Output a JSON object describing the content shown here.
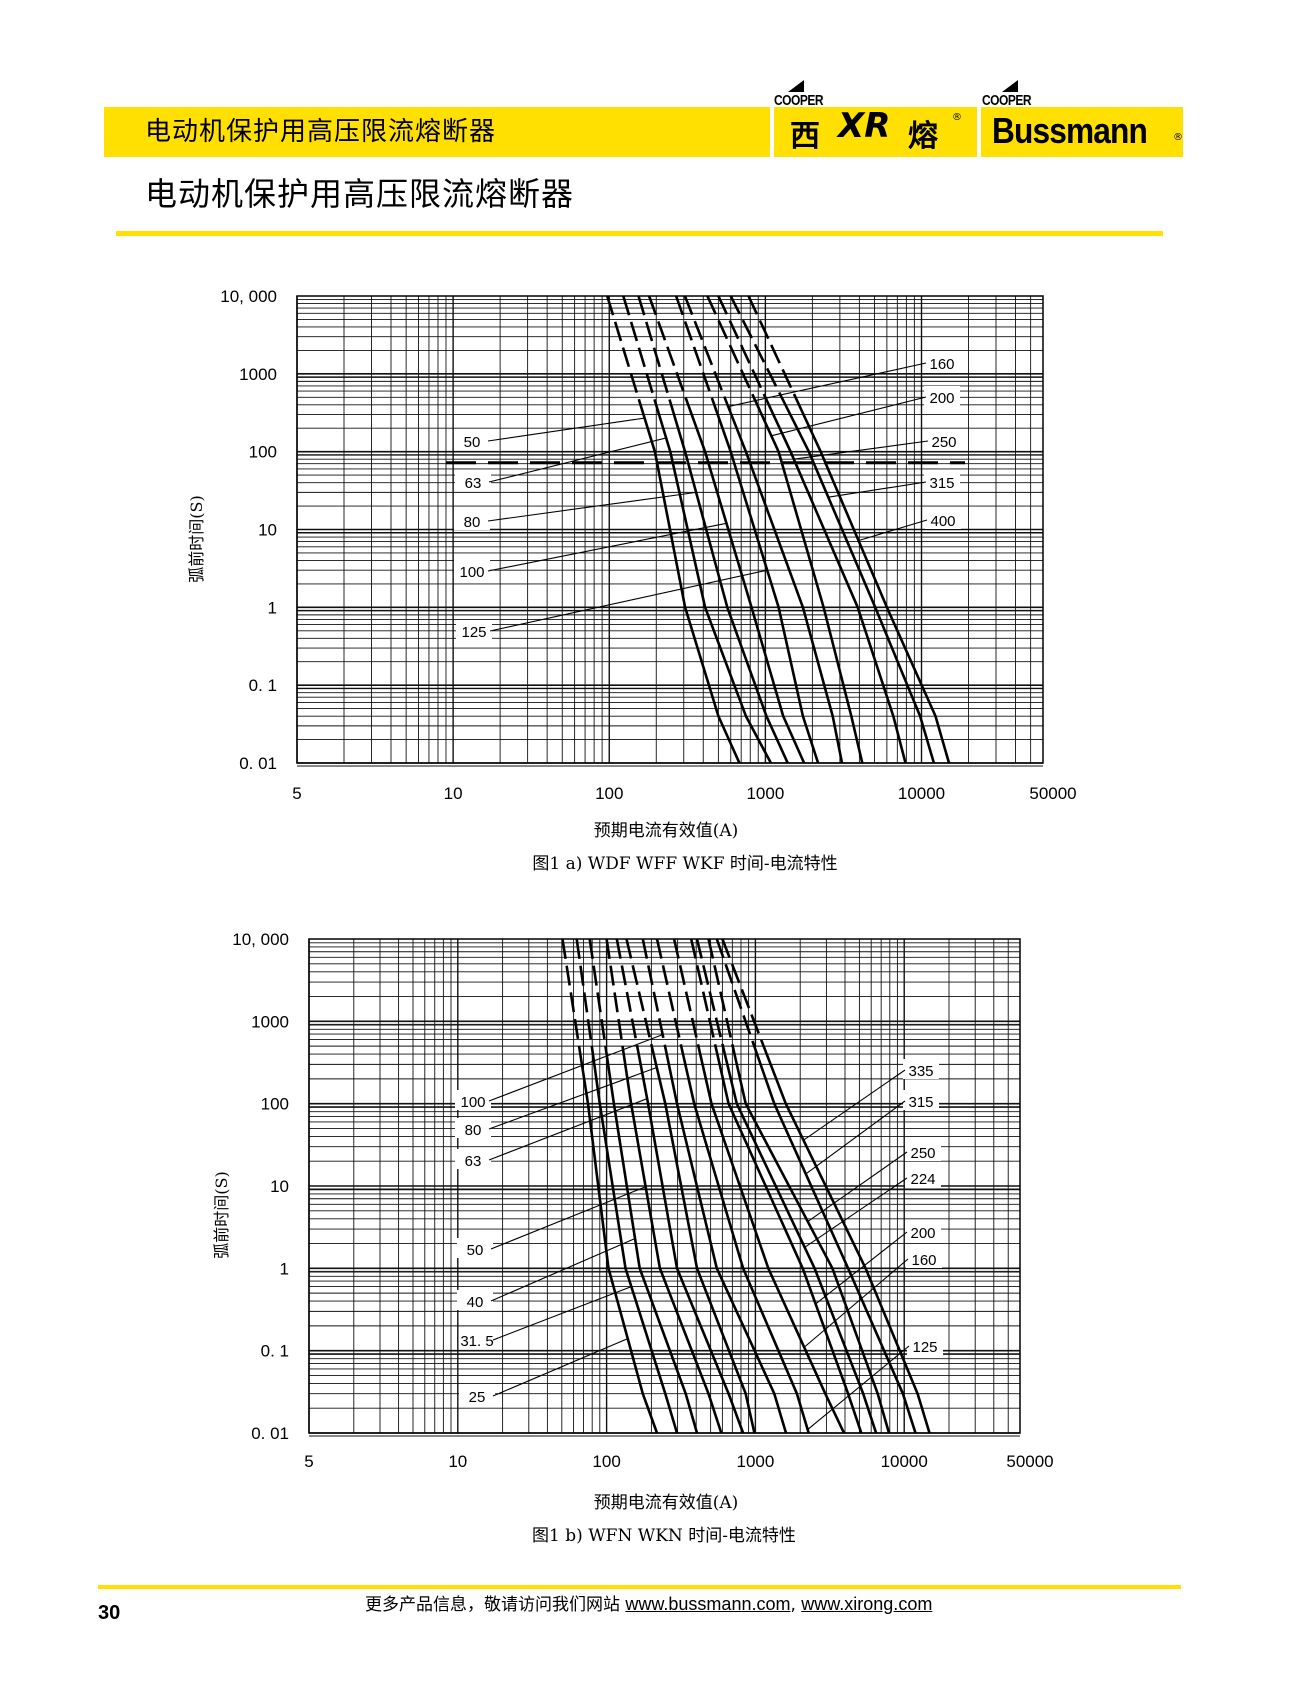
{
  "header": {
    "title": "电动机保护用高压限流熔断器",
    "logo_xirong": {
      "cooper": "COOPER",
      "left": "西",
      "mark": "XR",
      "right": "熔",
      "reg": "®"
    },
    "logo_bussmann": {
      "cooper": "COOPER",
      "name": "Bussmann",
      "reg": "®"
    },
    "brand_color": "#ffe000"
  },
  "page_title": "电动机保护用高压限流熔断器",
  "footer": {
    "page_number": "30",
    "text": "更多产品信息，敬请访问我们网站",
    "link1": "www.bussmann.com",
    "sep": ", ",
    "link2": "www.xirong.com"
  },
  "chart_data": [
    {
      "type": "line",
      "caption": "图1 a) WDF WFF WKF 时间-电流特性",
      "xlabel": "预期电流有效值(A)",
      "ylabel": "弧前时间(S)",
      "xscale": "log",
      "yscale": "log",
      "xlim": [
        5,
        50000
      ],
      "ylim": [
        0.01,
        10000
      ],
      "x_tick_labels": [
        "5",
        "10",
        "100",
        "1000",
        "10000",
        "50000"
      ],
      "x_tick_values": [
        5,
        10,
        100,
        1000,
        10000,
        50000
      ],
      "y_tick_labels": [
        "10, 000",
        "1000",
        "100",
        "10",
        "1",
        "0. 1",
        "0. 01"
      ],
      "y_tick_values": [
        10000,
        1000,
        100,
        10,
        1,
        0.1,
        0.01
      ],
      "grid": true,
      "reference_line": {
        "style": "dashed",
        "time_s": 72,
        "from_A": 9,
        "to_A": 19000
      },
      "series": [
        {
          "name": "50",
          "points": [
            [
              97,
              10000
            ],
            [
              196,
              100
            ],
            [
              306,
              1
            ],
            [
              500,
              0.04
            ],
            [
              682,
              0.01
            ]
          ]
        },
        {
          "name": "63",
          "points": [
            [
              123,
              10000
            ],
            [
              246,
              100
            ],
            [
              411,
              1
            ],
            [
              750,
              0.04
            ],
            [
              1084,
              0.01
            ]
          ]
        },
        {
          "name": "80",
          "points": [
            [
              154,
              10000
            ],
            [
              306,
              100
            ],
            [
              570,
              1
            ],
            [
              1015,
              0.04
            ],
            [
              1389,
              0.01
            ]
          ]
        },
        {
          "name": "100",
          "points": [
            [
              180,
              10000
            ],
            [
              411,
              100
            ],
            [
              815,
              1
            ],
            [
              1300,
              0.04
            ],
            [
              1770,
              0.01
            ]
          ]
        },
        {
          "name": "125",
          "points": [
            [
              268,
              10000
            ],
            [
              600,
              100
            ],
            [
              1216,
              1
            ],
            [
              1740,
              0.04
            ],
            [
              2176,
              0.01
            ]
          ]
        },
        {
          "name": "160",
          "points": [
            [
              305,
              10000
            ],
            [
              750,
              100
            ],
            [
              1740,
              1
            ],
            [
              2700,
              0.04
            ],
            [
              3095,
              0.01
            ]
          ]
        },
        {
          "name": "200",
          "points": [
            [
              425,
              10000
            ],
            [
              1216,
              100
            ],
            [
              2360,
              1
            ],
            [
              3550,
              0.04
            ],
            [
              4175,
              0.01
            ]
          ]
        },
        {
          "name": "250",
          "points": [
            [
              500,
              10000
            ],
            [
              1450,
              100
            ],
            [
              3900,
              1
            ],
            [
              6600,
              0.04
            ],
            [
              7900,
              0.01
            ]
          ]
        },
        {
          "name": "315",
          "points": [
            [
              600,
              10000
            ],
            [
              1900,
              100
            ],
            [
              5050,
              1
            ],
            [
              9800,
              0.04
            ],
            [
              12000,
              0.01
            ]
          ]
        },
        {
          "name": "400",
          "points": [
            [
              780,
              10000
            ],
            [
              2260,
              100
            ],
            [
              6000,
              1
            ],
            [
              12300,
              0.04
            ],
            [
              15000,
              0.01
            ]
          ]
        }
      ]
    },
    {
      "type": "line",
      "caption": "图1 b) WFN WKN 时间-电流特性",
      "xlabel": "预期电流有效值(A)",
      "ylabel": "弧前时间(S)",
      "xscale": "log",
      "yscale": "log",
      "xlim": [
        5,
        50000
      ],
      "ylim": [
        0.01,
        10000
      ],
      "x_tick_labels": [
        "5",
        "10",
        "100",
        "1000",
        "10000",
        "50000"
      ],
      "x_tick_values": [
        5,
        10,
        100,
        1000,
        10000,
        50000
      ],
      "y_tick_labels": [
        "10, 000",
        "1000",
        "100",
        "10",
        "1",
        "0. 1",
        "0. 01"
      ],
      "y_tick_values": [
        10000,
        1000,
        100,
        10,
        1,
        0.1,
        0.01
      ],
      "grid": true,
      "series": [
        {
          "name": "25",
          "points": [
            [
              50.5,
              10000
            ],
            [
              75,
              100
            ],
            [
              103,
              1
            ],
            [
              175,
              0.03
            ],
            [
              218,
              0.01
            ]
          ]
        },
        {
          "name": "31. 5",
          "points": [
            [
              63,
              10000
            ],
            [
              90,
              100
            ],
            [
              134,
              1
            ],
            [
              248,
              0.03
            ],
            [
              297,
              0.01
            ]
          ]
        },
        {
          "name": "40",
          "points": [
            [
              77,
              10000
            ],
            [
              112,
              100
            ],
            [
              167,
              1
            ],
            [
              340,
              0.03
            ],
            [
              405,
              0.01
            ]
          ]
        },
        {
          "name": "50",
          "points": [
            [
              100,
              10000
            ],
            [
              146,
              100
            ],
            [
              228,
              1
            ],
            [
              484,
              0.03
            ],
            [
              590,
              0.01
            ]
          ]
        },
        {
          "name": "63",
          "points": [
            [
              117,
              10000
            ],
            [
              190,
              100
            ],
            [
              297,
              1
            ],
            [
              660,
              0.03
            ],
            [
              826,
              0.01
            ]
          ]
        },
        {
          "name": "80",
          "points": [
            [
              136,
              10000
            ],
            [
              248,
              100
            ],
            [
              405,
              1
            ],
            [
              860,
              0.03
            ],
            [
              985,
              0.01
            ]
          ]
        },
        {
          "name": "100",
          "points": [
            [
              175,
              10000
            ],
            [
              297,
              100
            ],
            [
              550,
              1
            ],
            [
              1340,
              0.03
            ],
            [
              1606,
              0.01
            ]
          ]
        },
        {
          "name": "125",
          "points": [
            [
              218,
              10000
            ],
            [
              388,
              100
            ],
            [
              826,
              1
            ],
            [
              1900,
              0.03
            ],
            [
              2280,
              0.01
            ]
          ]
        },
        {
          "name": "160",
          "points": [
            [
              284,
              10000
            ],
            [
              507,
              100
            ],
            [
              1220,
              1
            ],
            [
              2950,
              0.03
            ],
            [
              3940,
              0.01
            ]
          ]
        },
        {
          "name": "200",
          "points": [
            [
              370,
              10000
            ],
            [
              660,
              100
            ],
            [
              2080,
              1
            ],
            [
              4200,
              0.03
            ],
            [
              5150,
              0.01
            ]
          ]
        },
        {
          "name": "224",
          "points": [
            [
              405,
              10000
            ],
            [
              750,
              100
            ],
            [
              2500,
              1
            ],
            [
              5300,
              0.03
            ],
            [
              6470,
              0.01
            ]
          ]
        },
        {
          "name": "250",
          "points": [
            [
              484,
              10000
            ],
            [
              860,
              100
            ],
            [
              3290,
              1
            ],
            [
              6630,
              0.03
            ],
            [
              7900,
              0.01
            ]
          ]
        },
        {
          "name": "315",
          "points": [
            [
              550,
              10000
            ],
            [
              1340,
              100
            ],
            [
              4200,
              1
            ],
            [
              9800,
              0.03
            ],
            [
              11900,
              0.01
            ]
          ]
        },
        {
          "name": "335",
          "points": [
            [
              600,
              10000
            ],
            [
              1600,
              100
            ],
            [
              5500,
              1
            ],
            [
              12300,
              0.03
            ],
            [
              14800,
              0.01
            ]
          ]
        }
      ]
    }
  ]
}
